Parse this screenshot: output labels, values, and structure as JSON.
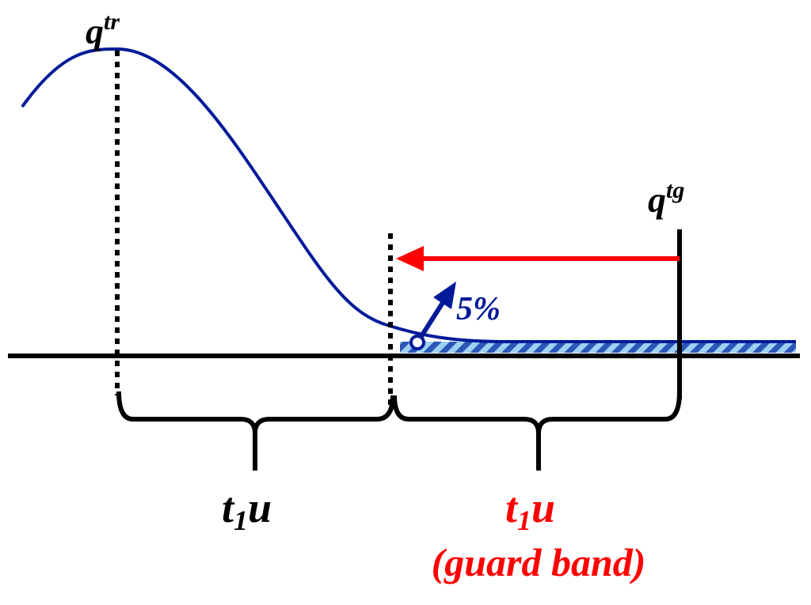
{
  "labels": {
    "peak": {
      "base": "q",
      "sup": "tr"
    },
    "target": {
      "base": "q",
      "sup": "tg"
    },
    "percent": "5%",
    "interval_left": {
      "base": "t",
      "sub": "1",
      "tail": "u"
    },
    "interval_right": {
      "base": "t",
      "sub": "1",
      "tail": "u"
    },
    "guard_band": "(guard band)"
  }
}
